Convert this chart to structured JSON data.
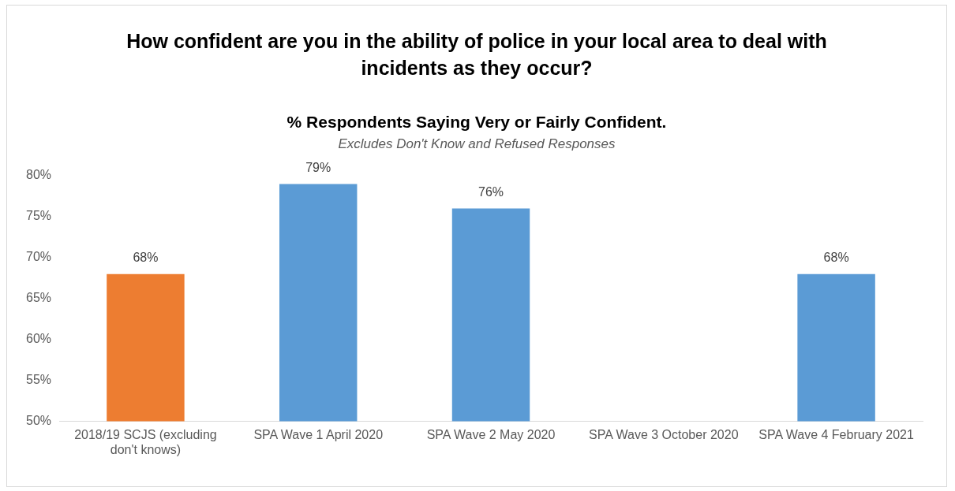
{
  "chart_data": {
    "type": "bar",
    "title": "How confident are you in the ability of police in your local area to deal with incidents as they occur?",
    "subtitle": "% Respondents Saying Very or Fairly Confident.",
    "annotations": [
      "Excludes Don't Know and Refused Responses"
    ],
    "categories": [
      "2018/19 SCJS (excluding don't knows)",
      "SPA Wave 1 April 2020",
      "SPA Wave 2 May 2020",
      "SPA Wave 3 October 2020",
      "SPA Wave 4 February 2021"
    ],
    "values": [
      68,
      79,
      76,
      null,
      68
    ],
    "colors": [
      "#ed7d31",
      "#5b9bd5",
      "#5b9bd5",
      "#5b9bd5",
      "#5b9bd5"
    ],
    "value_labels": [
      "68%",
      "79%",
      "76%",
      null,
      "68%"
    ],
    "ylim": [
      50,
      80
    ],
    "yticks": [
      {
        "value": 50,
        "label": "50%"
      },
      {
        "value": 55,
        "label": "55%"
      },
      {
        "value": 60,
        "label": "60%"
      },
      {
        "value": 65,
        "label": "65%"
      },
      {
        "value": 70,
        "label": "70%"
      },
      {
        "value": 75,
        "label": "75%"
      },
      {
        "value": 80,
        "label": "80%"
      }
    ],
    "grid": false,
    "legend": false
  }
}
